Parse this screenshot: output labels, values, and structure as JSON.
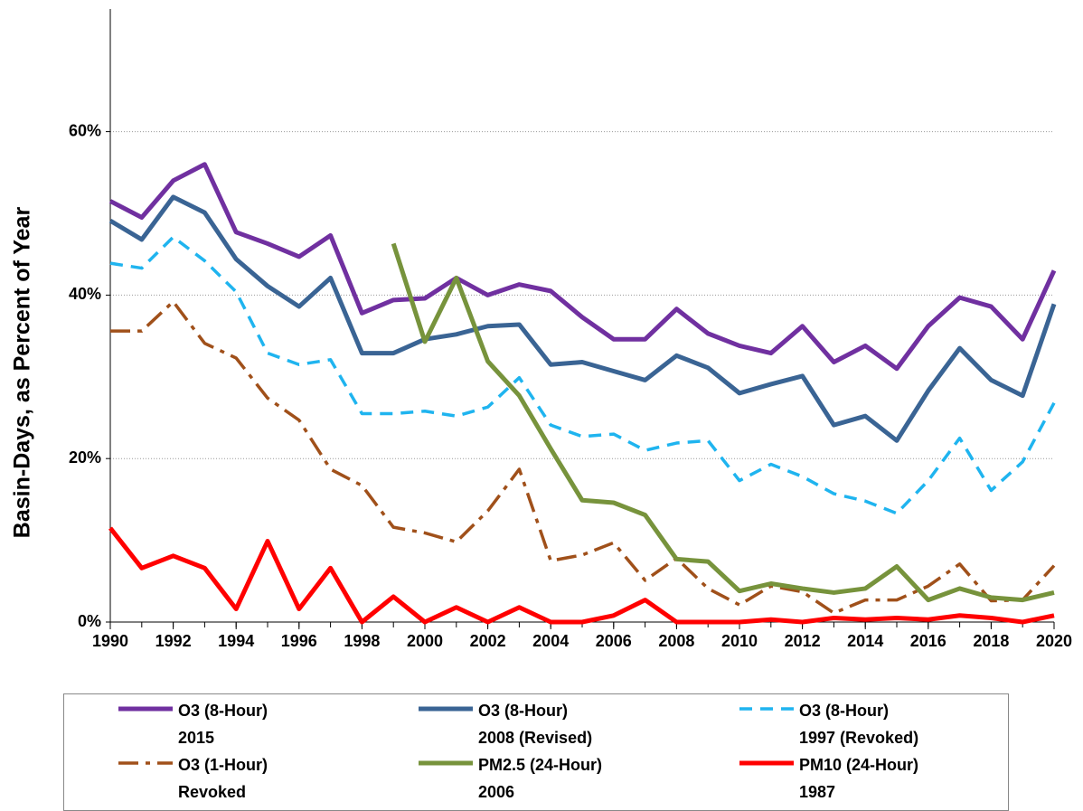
{
  "chart_data": {
    "type": "line",
    "ylabel": "Basin-Days, as Percent of Year",
    "x": [
      1990,
      1991,
      1992,
      1993,
      1994,
      1995,
      1996,
      1997,
      1998,
      1999,
      2000,
      2001,
      2002,
      2003,
      2004,
      2005,
      2006,
      2007,
      2008,
      2009,
      2010,
      2011,
      2012,
      2013,
      2014,
      2015,
      2016,
      2017,
      2018,
      2019,
      2020
    ],
    "xlim": [
      1990,
      2020
    ],
    "xticks": [
      1990,
      1992,
      1994,
      1996,
      1998,
      2000,
      2002,
      2004,
      2006,
      2008,
      2010,
      2012,
      2014,
      2016,
      2018,
      2020
    ],
    "ylim": [
      0,
      75
    ],
    "yticks": [
      {
        "value": 0,
        "label": "0%"
      },
      {
        "value": 20,
        "label": "20%"
      },
      {
        "value": 40,
        "label": "40%"
      },
      {
        "value": 60,
        "label": "60%"
      }
    ],
    "grid": true,
    "legend": "bottom",
    "series": [
      {
        "name": "O3 (8-Hour)\n2015",
        "color": "#7030a0",
        "style": "solid",
        "values": [
          51.5,
          49.5,
          54,
          56,
          47.7,
          46.3,
          44.7,
          47.3,
          37.8,
          39.4,
          39.6,
          42.1,
          40,
          41.3,
          40.5,
          37.3,
          34.6,
          34.6,
          38.3,
          35.3,
          33.8,
          32.9,
          36.2,
          31.8,
          33.8,
          31,
          36.2,
          39.7,
          38.6,
          34.6,
          43
        ]
      },
      {
        "name": "O3 (8-Hour)\n2008 (Revised)",
        "color": "#3a6494",
        "style": "solid",
        "values": [
          49.1,
          46.8,
          52,
          50.1,
          44.4,
          41.1,
          38.6,
          42.1,
          32.9,
          32.9,
          34.6,
          35.2,
          36.2,
          36.4,
          31.5,
          31.8,
          30.7,
          29.6,
          32.6,
          31.1,
          28,
          29.1,
          30.1,
          24.1,
          25.2,
          22.2,
          28.3,
          33.5,
          29.6,
          27.7,
          38.9
        ]
      },
      {
        "name": "O3 (8-Hour)\n1997 (Revoked)",
        "color": "#1fb4ef",
        "style": "dash",
        "values": [
          43.9,
          43.3,
          47.1,
          44.2,
          40.4,
          32.9,
          31.5,
          32.1,
          25.5,
          25.5,
          25.8,
          25.2,
          26.3,
          29.9,
          24.1,
          22.7,
          23,
          21,
          21.9,
          22.2,
          17.3,
          19.3,
          17.8,
          15.7,
          14.8,
          13.3,
          17.3,
          22.5,
          16.1,
          19.6,
          26.8
        ]
      },
      {
        "name": "O3 (1-Hour)\nRevoked",
        "color": "#a0501a",
        "style": "dashdot",
        "values": [
          35.6,
          35.6,
          39.2,
          34.1,
          32.3,
          27.4,
          24.7,
          18.7,
          16.7,
          11.6,
          10.9,
          9.8,
          13.6,
          18.7,
          7.5,
          8.2,
          9.7,
          5.1,
          7.8,
          4.1,
          2.1,
          4.4,
          3.7,
          1.1,
          2.7,
          2.7,
          4.4,
          7.1,
          2.6,
          2.7,
          6.9
        ]
      },
      {
        "name": "PM2.5 (24-Hour)\n2006",
        "color": "#77933c",
        "style": "solid",
        "values": [
          null,
          null,
          null,
          null,
          null,
          null,
          null,
          null,
          null,
          46.3,
          34.3,
          42.1,
          31.9,
          27.7,
          21.2,
          14.9,
          14.6,
          13.1,
          7.7,
          7.4,
          3.8,
          4.7,
          4.1,
          3.6,
          4.1,
          6.8,
          2.7,
          4.1,
          3,
          2.7,
          3.6
        ]
      },
      {
        "name": "PM10 (24-Hour)\n1987",
        "color": "#ff0000",
        "style": "solid",
        "values": [
          11.5,
          6.6,
          8.1,
          6.6,
          1.6,
          9.9,
          1.6,
          6.6,
          0,
          3.1,
          0,
          1.8,
          0,
          1.8,
          0,
          0,
          0.8,
          2.7,
          0,
          0,
          0,
          0.3,
          0,
          0.5,
          0.3,
          0.5,
          0.3,
          0.8,
          0.5,
          0,
          0.8
        ]
      }
    ]
  }
}
